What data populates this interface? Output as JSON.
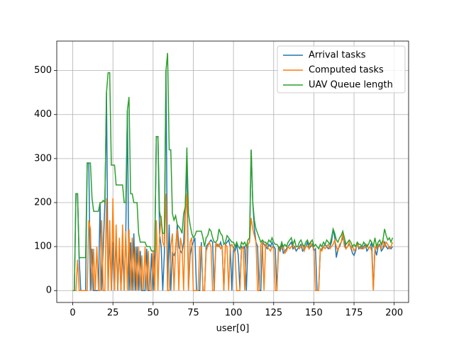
{
  "chart_data": {
    "type": "line",
    "xlabel": "user[0]",
    "xlim": [
      -9.95,
      208.95
    ],
    "ylim": [
      -27,
      567
    ],
    "xticks": [
      0,
      25,
      50,
      75,
      100,
      125,
      150,
      175,
      200
    ],
    "yticks": [
      0,
      100,
      200,
      300,
      400,
      500
    ],
    "grid": true,
    "legend": "upper right",
    "x": [
      0,
      1,
      2,
      3,
      4,
      5,
      6,
      7,
      8,
      9,
      10,
      11,
      12,
      13,
      14,
      15,
      16,
      17,
      18,
      19,
      20,
      21,
      22,
      23,
      24,
      25,
      26,
      27,
      28,
      29,
      30,
      31,
      32,
      33,
      34,
      35,
      36,
      37,
      38,
      39,
      40,
      41,
      42,
      43,
      44,
      45,
      46,
      47,
      48,
      49,
      50,
      51,
      52,
      53,
      54,
      55,
      56,
      57,
      58,
      59,
      60,
      61,
      62,
      63,
      64,
      65,
      66,
      67,
      68,
      69,
      70,
      71,
      72,
      73,
      74,
      75,
      76,
      77,
      78,
      79,
      80,
      81,
      82,
      83,
      84,
      85,
      86,
      87,
      88,
      89,
      90,
      91,
      92,
      93,
      94,
      95,
      96,
      97,
      98,
      99,
      100,
      101,
      102,
      103,
      104,
      105,
      106,
      107,
      108,
      109,
      110,
      111,
      112,
      113,
      114,
      115,
      116,
      117,
      118,
      119,
      120,
      121,
      122,
      123,
      124,
      125,
      126,
      127,
      128,
      129,
      130,
      131,
      132,
      133,
      134,
      135,
      136,
      137,
      138,
      139,
      140,
      141,
      142,
      143,
      144,
      145,
      146,
      147,
      148,
      149,
      150,
      151,
      152,
      153,
      154,
      155,
      156,
      157,
      158,
      159,
      160,
      161,
      162,
      163,
      164,
      165,
      166,
      167,
      168,
      169,
      170,
      171,
      172,
      173,
      174,
      175,
      176,
      177,
      178,
      179,
      180,
      181,
      182,
      183,
      184,
      185,
      186,
      187,
      188,
      189,
      190,
      191,
      192,
      193,
      194,
      195,
      196,
      197,
      198,
      199
    ],
    "series": [
      {
        "name": "Arrival tasks",
        "color": "#1f77b4",
        "values": [
          0,
          0,
          220,
          220,
          70,
          0,
          0,
          0,
          0,
          290,
          290,
          0,
          95,
          0,
          0,
          0,
          0,
          200,
          0,
          100,
          200,
          450,
          0,
          130,
          0,
          110,
          0,
          120,
          0,
          100,
          0,
          95,
          0,
          130,
          410,
          0,
          110,
          0,
          130,
          0,
          100,
          0,
          90,
          0,
          0,
          0,
          95,
          0,
          0,
          85,
          0,
          90,
          350,
          350,
          130,
          100,
          0,
          85,
          500,
          0,
          150,
          0,
          85,
          80,
          90,
          150,
          100,
          90,
          85,
          110,
          190,
          300,
          0,
          80,
          100,
          110,
          120,
          0,
          0,
          0,
          110,
          0,
          0,
          100,
          105,
          110,
          115,
          110,
          0,
          100,
          105,
          100,
          110,
          95,
          0,
          105,
          110,
          115,
          100,
          0,
          100,
          90,
          105,
          80,
          0,
          100,
          95,
          100,
          0,
          105,
          110,
          320,
          200,
          140,
          110,
          100,
          0,
          0,
          110,
          105,
          100,
          95,
          105,
          100,
          110,
          100,
          95,
          0,
          100,
          90,
          105,
          85,
          90,
          95,
          100,
          105,
          110,
          95,
          100,
          90,
          95,
          100,
          105,
          90,
          95,
          100,
          110,
          95,
          100,
          105,
          90,
          95,
          0,
          0,
          90,
          95,
          100,
          105,
          100,
          95,
          100,
          110,
          140,
          120,
          75,
          95,
          100,
          110,
          120,
          110,
          95,
          100,
          105,
          100,
          85,
          80,
          90,
          110,
          95,
          100,
          95,
          100,
          105,
          90,
          95,
          100,
          110,
          0,
          95,
          80,
          100,
          105,
          90,
          95,
          110,
          100,
          95,
          100,
          95,
          100
        ]
      },
      {
        "name": "Computed tasks",
        "color": "#ff7f0e",
        "values": [
          0,
          0,
          0,
          70,
          0,
          0,
          0,
          0,
          0,
          0,
          160,
          140,
          0,
          95,
          0,
          100,
          0,
          0,
          160,
          0,
          0,
          210,
          0,
          160,
          0,
          210,
          0,
          150,
          0,
          120,
          0,
          150,
          0,
          135,
          0,
          140,
          0,
          120,
          0,
          100,
          0,
          100,
          0,
          80,
          0,
          100,
          0,
          90,
          0,
          0,
          90,
          0,
          160,
          0,
          120,
          170,
          110,
          100,
          220,
          0,
          0,
          100,
          130,
          0,
          100,
          140,
          0,
          120,
          100,
          0,
          170,
          220,
          0,
          110,
          120,
          0,
          0,
          0,
          0,
          100,
          100,
          0,
          0,
          90,
          100,
          110,
          100,
          0,
          0,
          110,
          100,
          105,
          95,
          100,
          0,
          105,
          100,
          0,
          100,
          105,
          95,
          85,
          0,
          0,
          0,
          95,
          100,
          0,
          95,
          105,
          110,
          165,
          140,
          125,
          110,
          0,
          0,
          105,
          110,
          0,
          105,
          100,
          95,
          90,
          100,
          95,
          0,
          0,
          90,
          100,
          95,
          100,
          85,
          90,
          100,
          95,
          100,
          105,
          95,
          100,
          100,
          95,
          100,
          105,
          90,
          100,
          100,
          95,
          110,
          100,
          95,
          0,
          0,
          0,
          95,
          90,
          100,
          95,
          100,
          105,
          95,
          100,
          105,
          115,
          100,
          90,
          105,
          110,
          130,
          100,
          95,
          100,
          110,
          95,
          100,
          90,
          95,
          105,
          100,
          95,
          100,
          95,
          100,
          105,
          95,
          100,
          90,
          0,
          100,
          95,
          105,
          100,
          95,
          115,
          100,
          110,
          105,
          95,
          100,
          110
        ]
      },
      {
        "name": "UAV Queue length",
        "color": "#2ca02c",
        "values": [
          0,
          0,
          220,
          220,
          75,
          75,
          75,
          75,
          75,
          290,
          290,
          290,
          210,
          180,
          180,
          180,
          180,
          200,
          200,
          205,
          200,
          450,
          495,
          495,
          285,
          285,
          285,
          240,
          240,
          240,
          240,
          240,
          200,
          200,
          410,
          440,
          220,
          220,
          200,
          200,
          200,
          130,
          110,
          110,
          110,
          110,
          100,
          100,
          100,
          90,
          90,
          90,
          350,
          350,
          180,
          160,
          130,
          130,
          500,
          540,
          320,
          320,
          175,
          160,
          170,
          150,
          145,
          140,
          130,
          175,
          190,
          325,
          175,
          150,
          130,
          120,
          125,
          135,
          135,
          135,
          135,
          120,
          100,
          120,
          125,
          140,
          135,
          120,
          110,
          110,
          115,
          140,
          130,
          125,
          105,
          110,
          125,
          120,
          115,
          110,
          110,
          100,
          110,
          100,
          95,
          110,
          105,
          110,
          100,
          115,
          120,
          320,
          200,
          160,
          140,
          130,
          120,
          110,
          115,
          110,
          110,
          105,
          115,
          110,
          120,
          110,
          105,
          105,
          100,
          95,
          110,
          100,
          105,
          100,
          110,
          115,
          120,
          105,
          115,
          100,
          100,
          110,
          115,
          105,
          100,
          110,
          115,
          105,
          110,
          115,
          100,
          105,
          100,
          95,
          105,
          100,
          110,
          105,
          115,
          110,
          105,
          120,
          140,
          130,
          115,
          110,
          120,
          125,
          135,
          120,
          105,
          110,
          115,
          110,
          100,
          105,
          100,
          110,
          105,
          105,
          100,
          110,
          105,
          100,
          105,
          115,
          110,
          100,
          120,
          100,
          110,
          115,
          105,
          115,
          140,
          125,
          115,
          120,
          110,
          120
        ]
      }
    ]
  }
}
